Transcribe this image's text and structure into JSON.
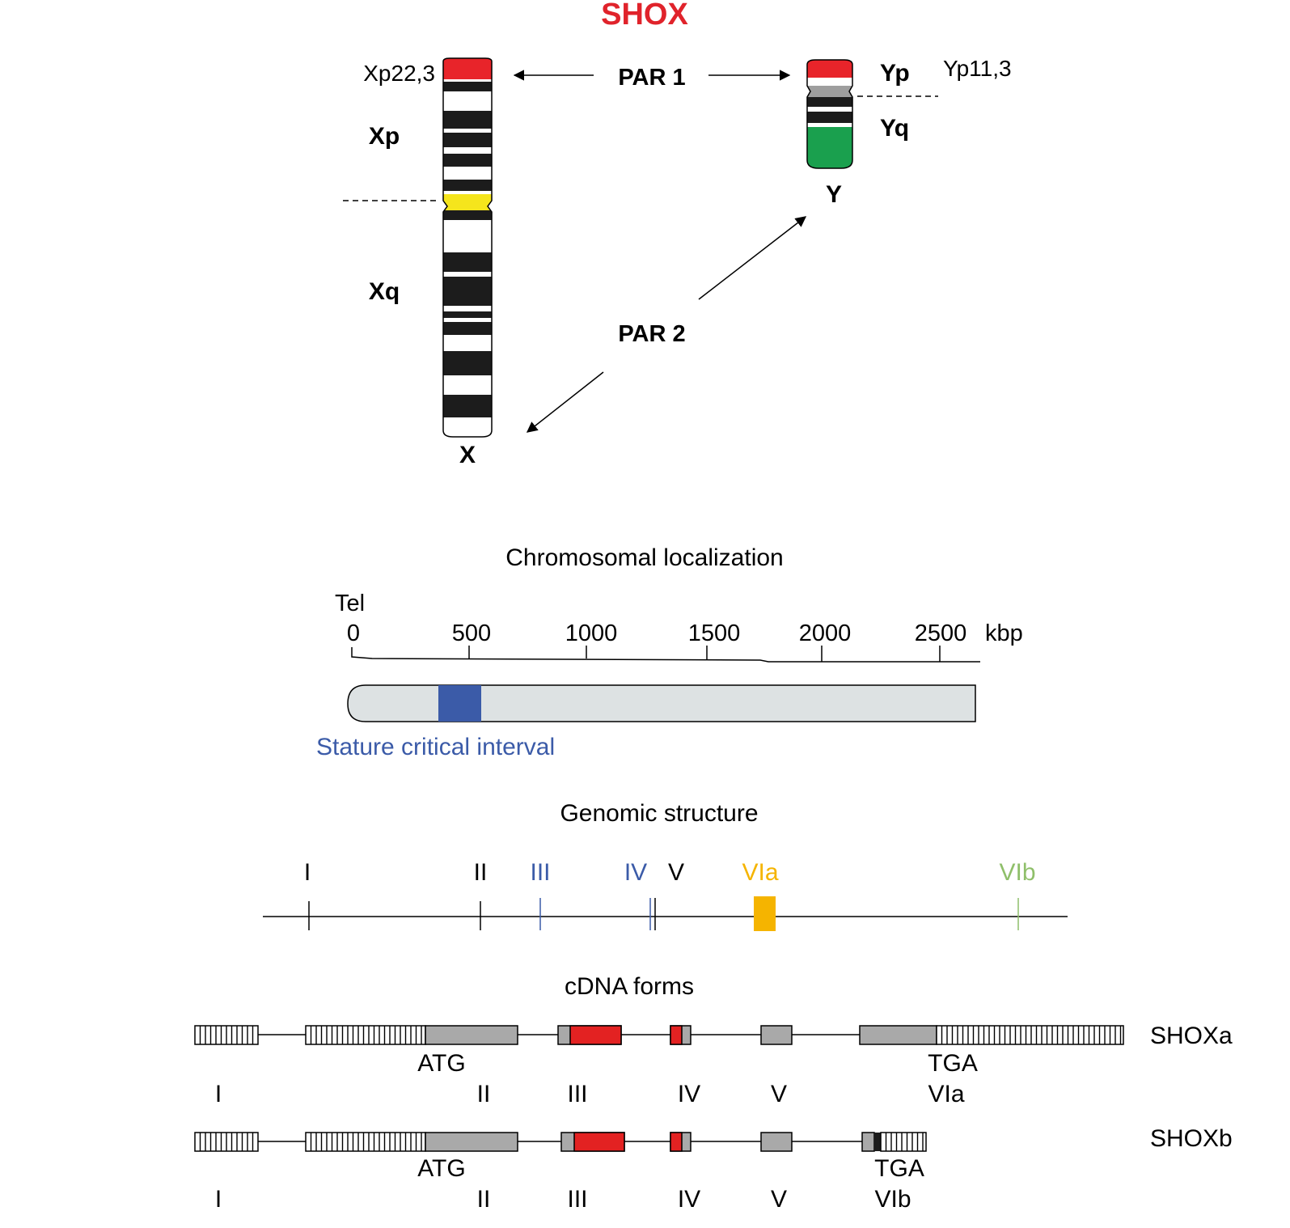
{
  "title": "SHOX",
  "chromosomes": {
    "x_band": "Xp22,3",
    "y_band": "Yp11,3",
    "xp": "Xp",
    "xq": "Xq",
    "x": "X",
    "yp": "Yp",
    "yq": "Yq",
    "y": "Y",
    "par1": "PAR 1",
    "par2": "PAR 2"
  },
  "localization": {
    "heading": "Chromosomal localization",
    "tel": "Tel",
    "ticks": [
      "0",
      "500",
      "1000",
      "1500",
      "2000",
      "2500"
    ],
    "unit": "kbp",
    "interval": "Stature critical interval"
  },
  "genomic": {
    "heading": "Genomic structure",
    "exons": [
      {
        "label": "I",
        "color": "#000000"
      },
      {
        "label": "II",
        "color": "#000000"
      },
      {
        "label": "III",
        "color": "#3b5ba8"
      },
      {
        "label": "IV",
        "color": "#3b5ba8"
      },
      {
        "label": "V",
        "color": "#000000"
      },
      {
        "label": "VIa",
        "color": "#f5b400"
      },
      {
        "label": "VIb",
        "color": "#8fbf6a"
      }
    ]
  },
  "cdna": {
    "heading": "cDNA forms",
    "shoxa": {
      "name": "SHOXa",
      "atg": "ATG",
      "tga": "TGA",
      "exons": [
        "I",
        "II",
        "III",
        "IV",
        "V",
        "VIa"
      ]
    },
    "shoxb": {
      "name": "SHOXb",
      "atg": "ATG",
      "tga": "TGA",
      "exons": [
        "I",
        "II",
        "III",
        "IV",
        "V",
        "VIb"
      ]
    }
  },
  "colors": {
    "title_red": "#e0232b",
    "par_red": "#e8242a",
    "centromere_yellow": "#f5e51c",
    "yq_green": "#1aa04e",
    "interval_blue": "#3b5ba8",
    "exon_gray": "#a9a9a9",
    "coding_red": "#e32222"
  }
}
